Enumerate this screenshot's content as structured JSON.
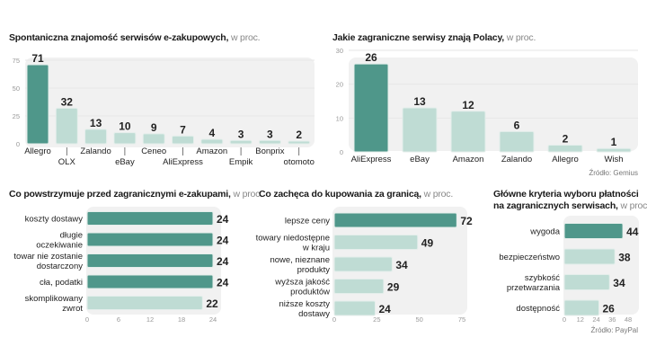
{
  "chart_data": [
    {
      "id": "c1",
      "type": "bar",
      "title": "Spontaniczna znajomość serwisów e-zakupowych,",
      "unit": "w proc.",
      "categories": [
        "Allegro",
        "OLX",
        "Zalando",
        "eBay",
        "Ceneo",
        "AliExpress",
        "Amazon",
        "Empik",
        "Bonprix",
        "otomoto"
      ],
      "values": [
        71,
        32,
        13,
        10,
        9,
        7,
        4,
        3,
        3,
        2
      ],
      "highlight": [
        0
      ],
      "ylim": [
        0,
        75
      ],
      "yticks": [
        0,
        25,
        50,
        75
      ],
      "grid": true,
      "xlabel": "",
      "ylabel": ""
    },
    {
      "id": "c2",
      "type": "bar",
      "title": "Jakie zagraniczne serwisy znają Polacy,",
      "unit": "w proc.",
      "categories": [
        "AliExpress",
        "eBay",
        "Amazon",
        "Zalando",
        "Allegro",
        "Wish"
      ],
      "values": [
        26,
        13,
        12,
        6,
        2,
        1
      ],
      "highlight": [
        0
      ],
      "ylim": [
        0,
        30
      ],
      "yticks": [
        0,
        10,
        20,
        30
      ],
      "grid": true,
      "source": "Źródło: Gemius",
      "xlabel": "",
      "ylabel": ""
    },
    {
      "id": "c3",
      "type": "bar",
      "orientation": "horizontal",
      "title": "Co powstrzymuje przed zagranicznymi e-zakupami,",
      "unit": "w proc.",
      "categories": [
        [
          "koszty dostawy"
        ],
        [
          "długie",
          "oczekiwanie"
        ],
        [
          "towar nie zostanie",
          "dostarczony"
        ],
        [
          "cła, podatki"
        ],
        [
          "skomplikowany",
          "zwrot"
        ]
      ],
      "values": [
        24,
        24,
        24,
        24,
        22
      ],
      "highlight": [
        0,
        1,
        2,
        3
      ],
      "xlim": [
        0,
        24
      ],
      "xticks": [
        0,
        6,
        12,
        18,
        24
      ]
    },
    {
      "id": "c4",
      "type": "bar",
      "orientation": "horizontal",
      "title": "Co zachęca do kupowania za granicą,",
      "unit": "w proc.",
      "categories": [
        [
          "lepsze ceny"
        ],
        [
          "towary niedostępne",
          "w kraju"
        ],
        [
          "nowe, nieznane",
          "produkty"
        ],
        [
          "wyższa jakość",
          "produktów"
        ],
        [
          "niższe koszty",
          "dostawy"
        ]
      ],
      "values": [
        72,
        49,
        34,
        29,
        24
      ],
      "highlight": [
        0
      ],
      "xlim": [
        0,
        75
      ],
      "xticks": [
        0,
        25,
        50,
        75
      ]
    },
    {
      "id": "c5",
      "type": "bar",
      "orientation": "horizontal",
      "title": "Główne kryteria wyboru płatności",
      "title2": "na zagranicznych serwisach,",
      "unit": "w proc.",
      "categories": [
        [
          "wygoda"
        ],
        [
          "bezpieczeństwo"
        ],
        [
          "szybkość",
          "przetwarzania"
        ],
        [
          "dostępność"
        ]
      ],
      "values": [
        44,
        38,
        34,
        26
      ],
      "highlight": [
        0
      ],
      "xlim": [
        0,
        48
      ],
      "xticks": [
        0,
        12,
        24,
        36,
        48
      ],
      "source": "Źródło: PayPal"
    }
  ],
  "colors": {
    "highlight": "#4f978a",
    "normal": "#bfdcd4",
    "panel": "#f1f1f1",
    "grid": "#e6e6e6"
  }
}
